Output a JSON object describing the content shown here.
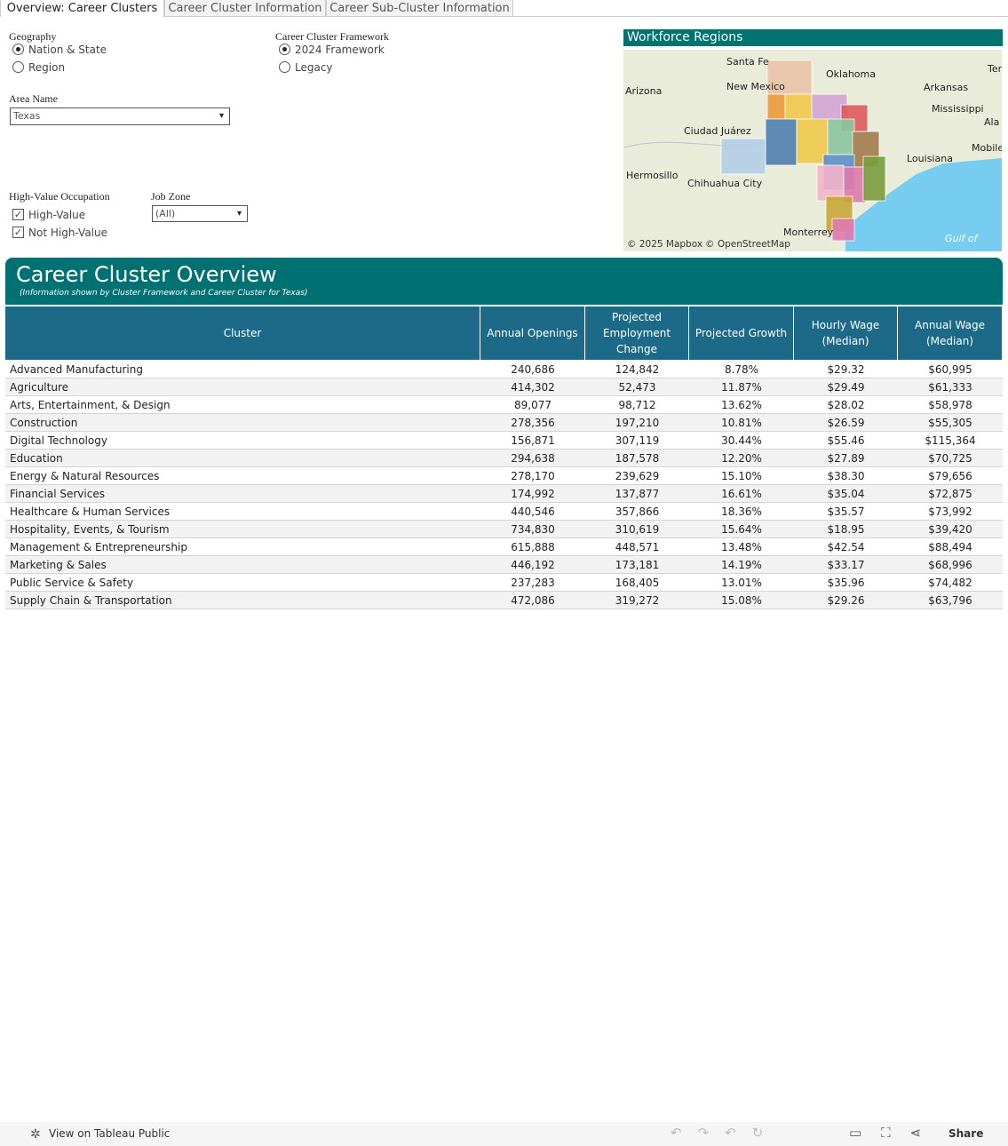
{
  "tabs": [
    "Overview: Career Clusters",
    "Career Cluster Information",
    "Career Sub-Cluster Information"
  ],
  "filters": {
    "geography": {
      "label": "Geography",
      "options": [
        "Nation & State",
        "Region"
      ]
    },
    "framework": {
      "label": "Career Cluster Framework",
      "options": [
        "2024 Framework",
        "Legacy"
      ]
    },
    "area_name": {
      "label": "Area Name",
      "value": "Texas"
    },
    "high_value": {
      "label": "High-Value Occupation",
      "options": [
        "High-Value",
        "Not High-Value"
      ]
    },
    "job_zone": {
      "label": "Job Zone",
      "value": "(All)"
    }
  },
  "map": {
    "title": "Workforce Regions",
    "places": [
      "Santa Fe",
      "New Mexico",
      "Arizona",
      "Oklahoma",
      "Arkansas",
      "Mississippi",
      "Ciudad Juárez",
      "Hermosillo",
      "Chihuahua City",
      "Monterrey",
      "Louisiana",
      "Mobile",
      "Ten",
      "Ala",
      "Gulf of"
    ],
    "attribution": [
      "© 2025 Mapbox",
      "© OpenStreetMap"
    ]
  },
  "table": {
    "title": "Career Cluster Overview",
    "subtitle": "(Information shown by Cluster Framework and Career Cluster for Texas)",
    "columns": [
      "Cluster",
      "Annual Openings",
      "Projected Employment Change",
      "Projected Growth",
      "Hourly Wage (Median)",
      "Annual Wage (Median)"
    ],
    "rows": [
      [
        "Advanced Manufacturing",
        "240,686",
        "124,842",
        "8.78%",
        "$29.32",
        "$60,995"
      ],
      [
        "Agriculture",
        "414,302",
        "52,473",
        "11.87%",
        "$29.49",
        "$61,333"
      ],
      [
        "Arts, Entertainment, & Design",
        "89,077",
        "98,712",
        "13.62%",
        "$28.02",
        "$58,978"
      ],
      [
        "Construction",
        "278,356",
        "197,210",
        "10.81%",
        "$26.59",
        "$55,305"
      ],
      [
        "Digital Technology",
        "156,871",
        "307,119",
        "30.44%",
        "$55.46",
        "$115,364"
      ],
      [
        "Education",
        "294,638",
        "187,578",
        "12.20%",
        "$27.89",
        "$70,725"
      ],
      [
        "Energy & Natural Resources",
        "278,170",
        "239,629",
        "15.10%",
        "$38.30",
        "$79,656"
      ],
      [
        "Financial Services",
        "174,992",
        "137,877",
        "16.61%",
        "$35.04",
        "$72,875"
      ],
      [
        "Healthcare & Human Services",
        "440,546",
        "357,866",
        "18.36%",
        "$35.57",
        "$73,992"
      ],
      [
        "Hospitality, Events, & Tourism",
        "734,830",
        "310,619",
        "15.64%",
        "$18.95",
        "$39,420"
      ],
      [
        "Management & Entrepreneurship",
        "615,888",
        "448,571",
        "13.48%",
        "$42.54",
        "$88,494"
      ],
      [
        "Marketing & Sales",
        "446,192",
        "173,181",
        "14.19%",
        "$33.17",
        "$68,996"
      ],
      [
        "Public Service & Safety",
        "237,283",
        "168,405",
        "13.01%",
        "$35.96",
        "$74,482"
      ],
      [
        "Supply Chain & Transportation",
        "472,086",
        "319,272",
        "15.08%",
        "$29.26",
        "$63,796"
      ]
    ]
  },
  "footer": {
    "view_link": "View on Tableau Public",
    "share": "Share"
  }
}
